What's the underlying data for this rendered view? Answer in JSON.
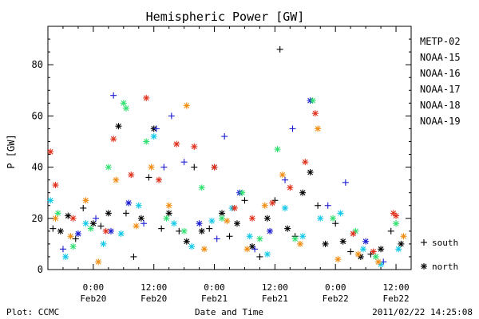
{
  "chart_data": {
    "type": "scatter",
    "title": "Hemispheric Power [GW]",
    "xlabel": "Date and Time",
    "ylabel": "P [GW]",
    "ylim": [
      0,
      95
    ],
    "xlim": [
      "2011-02-19T15:00",
      "2011-02-22T15:00"
    ],
    "y_ticks": [
      0,
      20,
      40,
      60,
      80
    ],
    "x_ticks": [
      {
        "x": "2011-02-20T00:00",
        "time": "0:00",
        "date": "Feb20"
      },
      {
        "x": "2011-02-20T12:00",
        "time": "12:00",
        "date": "Feb20"
      },
      {
        "x": "2011-02-21T00:00",
        "time": "0:00",
        "date": "Feb21"
      },
      {
        "x": "2011-02-21T12:00",
        "time": "12:00",
        "date": "Feb21"
      },
      {
        "x": "2011-02-22T00:00",
        "time": "0:00",
        "date": "Feb22"
      },
      {
        "x": "2011-02-22T12:00",
        "time": "12:00",
        "date": "Feb22"
      }
    ],
    "grid": false,
    "legend_position": "right",
    "marker_legend": [
      {
        "marker": "plus",
        "label": "south"
      },
      {
        "marker": "asterisk",
        "label": "north"
      }
    ],
    "series": [
      {
        "name": "METP-02",
        "color": "#000000",
        "points": [
          {
            "x": "2011-02-19T16:00",
            "y": 16,
            "hemisphere": "south"
          },
          {
            "x": "2011-02-19T17:30",
            "y": 15,
            "hemisphere": "north"
          },
          {
            "x": "2011-02-19T19:00",
            "y": 21,
            "hemisphere": "north"
          },
          {
            "x": "2011-02-19T20:30",
            "y": 12,
            "hemisphere": "south"
          },
          {
            "x": "2011-02-19T22:00",
            "y": 24,
            "hemisphere": "south"
          },
          {
            "x": "2011-02-20T00:00",
            "y": 18,
            "hemisphere": "north"
          },
          {
            "x": "2011-02-20T01:30",
            "y": 17,
            "hemisphere": "south"
          },
          {
            "x": "2011-02-20T03:00",
            "y": 22,
            "hemisphere": "north"
          },
          {
            "x": "2011-02-20T05:00",
            "y": 56,
            "hemisphere": "north"
          },
          {
            "x": "2011-02-20T06:30",
            "y": 22,
            "hemisphere": "south"
          },
          {
            "x": "2011-02-20T08:00",
            "y": 5,
            "hemisphere": "south"
          },
          {
            "x": "2011-02-20T09:30",
            "y": 20,
            "hemisphere": "north"
          },
          {
            "x": "2011-02-20T11:00",
            "y": 36,
            "hemisphere": "south"
          },
          {
            "x": "2011-02-20T12:00",
            "y": 55,
            "hemisphere": "north"
          },
          {
            "x": "2011-02-20T13:30",
            "y": 16,
            "hemisphere": "south"
          },
          {
            "x": "2011-02-20T15:00",
            "y": 22,
            "hemisphere": "north"
          },
          {
            "x": "2011-02-20T17:00",
            "y": 15,
            "hemisphere": "south"
          },
          {
            "x": "2011-02-20T18:30",
            "y": 11,
            "hemisphere": "north"
          },
          {
            "x": "2011-02-20T20:00",
            "y": 40,
            "hemisphere": "south"
          },
          {
            "x": "2011-02-20T21:30",
            "y": 15,
            "hemisphere": "north"
          },
          {
            "x": "2011-02-20T23:00",
            "y": 16,
            "hemisphere": "south"
          },
          {
            "x": "2011-02-21T00:00",
            "y": 40,
            "hemisphere": "north"
          },
          {
            "x": "2011-02-21T01:30",
            "y": 22,
            "hemisphere": "north"
          },
          {
            "x": "2011-02-21T03:00",
            "y": 13,
            "hemisphere": "south"
          },
          {
            "x": "2011-02-21T04:30",
            "y": 18,
            "hemisphere": "north"
          },
          {
            "x": "2011-02-21T06:00",
            "y": 27,
            "hemisphere": "south"
          },
          {
            "x": "2011-02-21T07:30",
            "y": 9,
            "hemisphere": "north"
          },
          {
            "x": "2011-02-21T09:00",
            "y": 5,
            "hemisphere": "south"
          },
          {
            "x": "2011-02-21T10:30",
            "y": 20,
            "hemisphere": "north"
          },
          {
            "x": "2011-02-21T12:00",
            "y": 27,
            "hemisphere": "south"
          },
          {
            "x": "2011-02-21T13:00",
            "y": 86,
            "hemisphere": "south"
          },
          {
            "x": "2011-02-21T14:30",
            "y": 16,
            "hemisphere": "north"
          },
          {
            "x": "2011-02-21T16:00",
            "y": 13,
            "hemisphere": "south"
          },
          {
            "x": "2011-02-21T17:30",
            "y": 30,
            "hemisphere": "north"
          },
          {
            "x": "2011-02-21T19:00",
            "y": 38,
            "hemisphere": "north"
          },
          {
            "x": "2011-02-21T20:30",
            "y": 25,
            "hemisphere": "south"
          },
          {
            "x": "2011-02-21T22:00",
            "y": 10,
            "hemisphere": "north"
          },
          {
            "x": "2011-02-22T00:00",
            "y": 18,
            "hemisphere": "south"
          },
          {
            "x": "2011-02-22T01:30",
            "y": 11,
            "hemisphere": "north"
          },
          {
            "x": "2011-02-22T03:00",
            "y": 7,
            "hemisphere": "south"
          },
          {
            "x": "2011-02-22T05:00",
            "y": 5,
            "hemisphere": "north"
          },
          {
            "x": "2011-02-22T07:00",
            "y": 6,
            "hemisphere": "south"
          },
          {
            "x": "2011-02-22T09:00",
            "y": 8,
            "hemisphere": "north"
          },
          {
            "x": "2011-02-22T11:00",
            "y": 15,
            "hemisphere": "south"
          },
          {
            "x": "2011-02-22T13:00",
            "y": 10,
            "hemisphere": "north"
          }
        ]
      },
      {
        "name": "NOAA-15",
        "color": "#1a1ad0",
        "points": [
          {
            "x": "2011-02-19T18:00",
            "y": 8,
            "hemisphere": "south"
          },
          {
            "x": "2011-02-19T21:00",
            "y": 14,
            "hemisphere": "north"
          },
          {
            "x": "2011-02-20T00:30",
            "y": 20,
            "hemisphere": "south"
          },
          {
            "x": "2011-02-20T03:30",
            "y": 15,
            "hemisphere": "north"
          },
          {
            "x": "2011-02-20T04:00",
            "y": 68,
            "hemisphere": "south"
          },
          {
            "x": "2011-02-20T07:00",
            "y": 26,
            "hemisphere": "north"
          },
          {
            "x": "2011-02-20T10:00",
            "y": 18,
            "hemisphere": "south"
          },
          {
            "x": "2011-02-20T12:30",
            "y": 55,
            "hemisphere": "south"
          },
          {
            "x": "2011-02-20T14:00",
            "y": 40,
            "hemisphere": "south"
          },
          {
            "x": "2011-02-20T15:30",
            "y": 60,
            "hemisphere": "south"
          },
          {
            "x": "2011-02-20T18:00",
            "y": 42,
            "hemisphere": "south"
          },
          {
            "x": "2011-02-20T21:00",
            "y": 18,
            "hemisphere": "north"
          },
          {
            "x": "2011-02-21T00:30",
            "y": 12,
            "hemisphere": "south"
          },
          {
            "x": "2011-02-21T02:00",
            "y": 52,
            "hemisphere": "south"
          },
          {
            "x": "2011-02-21T05:00",
            "y": 30,
            "hemisphere": "north"
          },
          {
            "x": "2011-02-21T08:00",
            "y": 8,
            "hemisphere": "south"
          },
          {
            "x": "2011-02-21T11:00",
            "y": 15,
            "hemisphere": "north"
          },
          {
            "x": "2011-02-21T14:00",
            "y": 35,
            "hemisphere": "south"
          },
          {
            "x": "2011-02-21T15:30",
            "y": 55,
            "hemisphere": "south"
          },
          {
            "x": "2011-02-21T19:00",
            "y": 66,
            "hemisphere": "north"
          },
          {
            "x": "2011-02-21T22:30",
            "y": 25,
            "hemisphere": "south"
          },
          {
            "x": "2011-02-22T02:00",
            "y": 34,
            "hemisphere": "south"
          },
          {
            "x": "2011-02-22T06:00",
            "y": 11,
            "hemisphere": "north"
          },
          {
            "x": "2011-02-22T09:30",
            "y": 3,
            "hemisphere": "south"
          }
        ]
      },
      {
        "name": "NOAA-16",
        "color": "#10c8e8",
        "points": [
          {
            "x": "2011-02-19T15:30",
            "y": 27,
            "hemisphere": "north"
          },
          {
            "x": "2011-02-19T18:30",
            "y": 5,
            "hemisphere": "north"
          },
          {
            "x": "2011-02-19T22:30",
            "y": 18,
            "hemisphere": "north"
          },
          {
            "x": "2011-02-20T02:00",
            "y": 10,
            "hemisphere": "north"
          },
          {
            "x": "2011-02-20T05:30",
            "y": 14,
            "hemisphere": "north"
          },
          {
            "x": "2011-02-20T09:00",
            "y": 25,
            "hemisphere": "north"
          },
          {
            "x": "2011-02-20T12:00",
            "y": 52,
            "hemisphere": "north"
          },
          {
            "x": "2011-02-20T16:00",
            "y": 18,
            "hemisphere": "north"
          },
          {
            "x": "2011-02-20T19:30",
            "y": 9,
            "hemisphere": "north"
          },
          {
            "x": "2011-02-20T23:30",
            "y": 19,
            "hemisphere": "north"
          },
          {
            "x": "2011-02-21T03:30",
            "y": 24,
            "hemisphere": "north"
          },
          {
            "x": "2011-02-21T07:00",
            "y": 13,
            "hemisphere": "north"
          },
          {
            "x": "2011-02-21T10:30",
            "y": 6,
            "hemisphere": "north"
          },
          {
            "x": "2011-02-21T14:00",
            "y": 24,
            "hemisphere": "north"
          },
          {
            "x": "2011-02-21T17:30",
            "y": 13,
            "hemisphere": "north"
          },
          {
            "x": "2011-02-21T21:00",
            "y": 20,
            "hemisphere": "north"
          },
          {
            "x": "2011-02-22T01:00",
            "y": 22,
            "hemisphere": "north"
          },
          {
            "x": "2011-02-22T05:30",
            "y": 8,
            "hemisphere": "north"
          },
          {
            "x": "2011-02-22T09:00",
            "y": 2,
            "hemisphere": "north"
          },
          {
            "x": "2011-02-22T12:30",
            "y": 8,
            "hemisphere": "north"
          }
        ]
      },
      {
        "name": "NOAA-17",
        "color": "#30e070",
        "points": [
          {
            "x": "2011-02-19T17:00",
            "y": 22,
            "hemisphere": "north"
          },
          {
            "x": "2011-02-19T20:00",
            "y": 9,
            "hemisphere": "north"
          },
          {
            "x": "2011-02-19T23:30",
            "y": 16,
            "hemisphere": "north"
          },
          {
            "x": "2011-02-20T03:00",
            "y": 40,
            "hemisphere": "north"
          },
          {
            "x": "2011-02-20T06:00",
            "y": 65,
            "hemisphere": "north"
          },
          {
            "x": "2011-02-20T06:30",
            "y": 63,
            "hemisphere": "north"
          },
          {
            "x": "2011-02-20T10:30",
            "y": 50,
            "hemisphere": "north"
          },
          {
            "x": "2011-02-20T14:30",
            "y": 20,
            "hemisphere": "north"
          },
          {
            "x": "2011-02-20T18:00",
            "y": 15,
            "hemisphere": "north"
          },
          {
            "x": "2011-02-20T21:30",
            "y": 32,
            "hemisphere": "north"
          },
          {
            "x": "2011-02-21T01:30",
            "y": 20,
            "hemisphere": "north"
          },
          {
            "x": "2011-02-21T05:30",
            "y": 30,
            "hemisphere": "north"
          },
          {
            "x": "2011-02-21T09:00",
            "y": 12,
            "hemisphere": "north"
          },
          {
            "x": "2011-02-21T12:30",
            "y": 47,
            "hemisphere": "north"
          },
          {
            "x": "2011-02-21T16:00",
            "y": 12,
            "hemisphere": "north"
          },
          {
            "x": "2011-02-21T19:30",
            "y": 66,
            "hemisphere": "north"
          },
          {
            "x": "2011-02-21T23:30",
            "y": 20,
            "hemisphere": "north"
          },
          {
            "x": "2011-02-22T04:00",
            "y": 15,
            "hemisphere": "north"
          },
          {
            "x": "2011-02-22T08:00",
            "y": 5,
            "hemisphere": "north"
          },
          {
            "x": "2011-02-22T12:00",
            "y": 18,
            "hemisphere": "north"
          }
        ]
      },
      {
        "name": "NOAA-18",
        "color": "#f08c10",
        "points": [
          {
            "x": "2011-02-19T16:30",
            "y": 20,
            "hemisphere": "north"
          },
          {
            "x": "2011-02-19T19:30",
            "y": 13,
            "hemisphere": "north"
          },
          {
            "x": "2011-02-19T22:30",
            "y": 27,
            "hemisphere": "north"
          },
          {
            "x": "2011-02-20T01:00",
            "y": 3,
            "hemisphere": "north"
          },
          {
            "x": "2011-02-20T04:30",
            "y": 35,
            "hemisphere": "north"
          },
          {
            "x": "2011-02-20T08:30",
            "y": 17,
            "hemisphere": "north"
          },
          {
            "x": "2011-02-20T11:30",
            "y": 40,
            "hemisphere": "north"
          },
          {
            "x": "2011-02-20T15:00",
            "y": 25,
            "hemisphere": "north"
          },
          {
            "x": "2011-02-20T18:30",
            "y": 64,
            "hemisphere": "north"
          },
          {
            "x": "2011-02-20T22:00",
            "y": 8,
            "hemisphere": "north"
          },
          {
            "x": "2011-02-21T02:30",
            "y": 19,
            "hemisphere": "north"
          },
          {
            "x": "2011-02-21T06:30",
            "y": 8,
            "hemisphere": "north"
          },
          {
            "x": "2011-02-21T10:00",
            "y": 25,
            "hemisphere": "north"
          },
          {
            "x": "2011-02-21T13:30",
            "y": 37,
            "hemisphere": "north"
          },
          {
            "x": "2011-02-21T17:00",
            "y": 10,
            "hemisphere": "north"
          },
          {
            "x": "2011-02-21T20:30",
            "y": 55,
            "hemisphere": "north"
          },
          {
            "x": "2011-02-22T00:30",
            "y": 4,
            "hemisphere": "north"
          },
          {
            "x": "2011-02-22T04:30",
            "y": 6,
            "hemisphere": "north"
          },
          {
            "x": "2011-02-22T08:30",
            "y": 3,
            "hemisphere": "north"
          },
          {
            "x": "2011-02-22T13:30",
            "y": 13,
            "hemisphere": "north"
          }
        ]
      },
      {
        "name": "NOAA-19",
        "color": "#e0301c",
        "points": [
          {
            "x": "2011-02-19T15:30",
            "y": 46,
            "hemisphere": "north"
          },
          {
            "x": "2011-02-19T16:30",
            "y": 33,
            "hemisphere": "north"
          },
          {
            "x": "2011-02-19T20:00",
            "y": 20,
            "hemisphere": "north"
          },
          {
            "x": "2011-02-20T02:30",
            "y": 15,
            "hemisphere": "north"
          },
          {
            "x": "2011-02-20T04:00",
            "y": 51,
            "hemisphere": "north"
          },
          {
            "x": "2011-02-20T07:30",
            "y": 37,
            "hemisphere": "north"
          },
          {
            "x": "2011-02-20T10:30",
            "y": 67,
            "hemisphere": "north"
          },
          {
            "x": "2011-02-20T13:00",
            "y": 35,
            "hemisphere": "north"
          },
          {
            "x": "2011-02-20T16:30",
            "y": 49,
            "hemisphere": "north"
          },
          {
            "x": "2011-02-20T20:00",
            "y": 48,
            "hemisphere": "north"
          },
          {
            "x": "2011-02-21T00:00",
            "y": 40,
            "hemisphere": "north"
          },
          {
            "x": "2011-02-21T04:00",
            "y": 24,
            "hemisphere": "north"
          },
          {
            "x": "2011-02-21T07:30",
            "y": 20,
            "hemisphere": "north"
          },
          {
            "x": "2011-02-21T11:30",
            "y": 26,
            "hemisphere": "north"
          },
          {
            "x": "2011-02-21T15:00",
            "y": 32,
            "hemisphere": "north"
          },
          {
            "x": "2011-02-21T18:00",
            "y": 42,
            "hemisphere": "north"
          },
          {
            "x": "2011-02-21T20:00",
            "y": 61,
            "hemisphere": "north"
          },
          {
            "x": "2011-02-22T03:30",
            "y": 14,
            "hemisphere": "north"
          },
          {
            "x": "2011-02-22T07:30",
            "y": 7,
            "hemisphere": "north"
          },
          {
            "x": "2011-02-22T11:30",
            "y": 22,
            "hemisphere": "north"
          },
          {
            "x": "2011-02-22T12:00",
            "y": 21,
            "hemisphere": "north"
          }
        ]
      }
    ]
  },
  "footer": {
    "plot_credit": "Plot: CCMC",
    "timestamp": "2011/02/22 14:25:08"
  }
}
